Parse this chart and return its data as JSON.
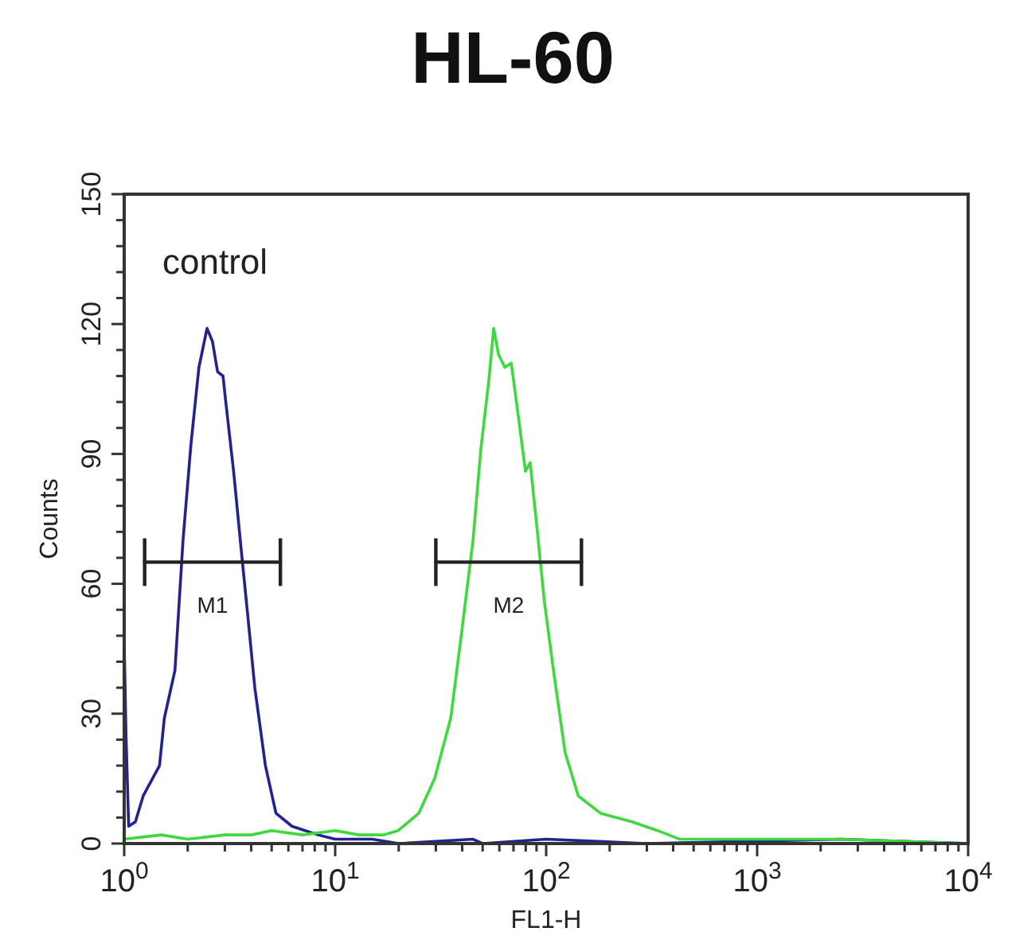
{
  "chart_data": {
    "type": "line",
    "title": "HL-60",
    "xlabel": "FL1-H",
    "ylabel": "Counts",
    "log": "x",
    "xlim": [
      1,
      10000
    ],
    "xticks": [
      {
        "value": 1,
        "label": "10$^{0}$"
      },
      {
        "value": 2,
        "label": null
      },
      {
        "value": 3,
        "label": null
      },
      {
        "value": 4,
        "label": null
      },
      {
        "value": 5,
        "label": null
      },
      {
        "value": 6,
        "label": null
      },
      {
        "value": 7,
        "label": null
      },
      {
        "value": 8,
        "label": null
      },
      {
        "value": 9,
        "label": null
      },
      {
        "value": 10,
        "label": "10$^{1}$"
      },
      {
        "value": 20,
        "label": null
      },
      {
        "value": 30,
        "label": null
      },
      {
        "value": 40,
        "label": null
      },
      {
        "value": 50,
        "label": null
      },
      {
        "value": 60,
        "label": null
      },
      {
        "value": 70,
        "label": null
      },
      {
        "value": 80,
        "label": null
      },
      {
        "value": 90,
        "label": null
      },
      {
        "value": 100,
        "label": "10$^{2}$"
      },
      {
        "value": 200,
        "label": null
      },
      {
        "value": 300,
        "label": null
      },
      {
        "value": 400,
        "label": null
      },
      {
        "value": 500,
        "label": null
      },
      {
        "value": 600,
        "label": null
      },
      {
        "value": 700,
        "label": null
      },
      {
        "value": 800,
        "label": null
      },
      {
        "value": 900,
        "label": null
      },
      {
        "value": 1000,
        "label": "10$^{3}$"
      },
      {
        "value": 2000,
        "label": null
      },
      {
        "value": 3000,
        "label": null
      },
      {
        "value": 4000,
        "label": null
      },
      {
        "value": 5000,
        "label": null
      },
      {
        "value": 6000,
        "label": null
      },
      {
        "value": 7000,
        "label": null
      },
      {
        "value": 8000,
        "label": null
      },
      {
        "value": 9000,
        "label": null
      },
      {
        "value": 10000,
        "label": "10$^{4}$"
      }
    ],
    "ylim": [
      0,
      150
    ],
    "yticks": [
      0,
      {
        "value": 6,
        "label": null
      },
      {
        "value": 12,
        "label": null
      },
      {
        "value": 18,
        "label": null
      },
      {
        "value": 24,
        "label": null
      },
      30,
      {
        "value": 36,
        "label": null
      },
      {
        "value": 42,
        "label": null
      },
      {
        "value": 48,
        "label": null
      },
      {
        "value": 54,
        "label": null
      },
      60,
      {
        "value": 66,
        "label": null
      },
      {
        "value": 72,
        "label": null
      },
      {
        "value": 78,
        "label": null
      },
      {
        "value": 84,
        "label": null
      },
      90,
      {
        "value": 96,
        "label": null
      },
      {
        "value": 102,
        "label": null
      },
      {
        "value": 108,
        "label": null
      },
      {
        "value": 114,
        "label": null
      },
      120,
      {
        "value": 126,
        "label": null
      },
      {
        "value": 132,
        "label": null
      },
      {
        "value": 138,
        "label": null
      },
      {
        "value": 144,
        "label": null
      },
      150
    ],
    "series": [
      {
        "color": "#23238f",
        "x": [
          1,
          1,
          1.02,
          1.05,
          1.13,
          1.23,
          1.47,
          1.55,
          1.74,
          1.9,
          2.07,
          2.26,
          2.47,
          2.62,
          2.77,
          2.94,
          3.03,
          3.3,
          3.6,
          3.81,
          4.16,
          4.67,
          5.24,
          6.24,
          8.3,
          10,
          15,
          20,
          45,
          50,
          100,
          300,
          2500,
          10000
        ],
        "values": [
          0,
          46,
          25,
          4,
          5,
          11,
          18,
          29,
          40,
          70,
          92,
          110,
          119,
          116,
          109,
          108,
          102,
          86,
          67,
          55,
          36,
          18,
          7,
          4,
          2,
          1,
          1,
          0,
          1,
          0,
          1,
          0,
          1,
          0
        ]
      },
      {
        "color": "#3fd93f",
        "x": [
          1,
          1.5,
          2,
          3,
          4,
          5,
          7,
          10,
          13,
          17,
          19.9,
          24.9,
          29.6,
          35.3,
          39.8,
          45,
          49,
          53.5,
          56.4,
          59.4,
          63.7,
          68.3,
          73.2,
          79.8,
          84,
          90,
          98,
          109,
          123,
          142,
          181,
          256,
          337,
          430,
          500,
          900,
          2500,
          10000
        ],
        "values": [
          1,
          2,
          1,
          2,
          2,
          3,
          2,
          3,
          2,
          2,
          3,
          7,
          15,
          29,
          49,
          70,
          91,
          107,
          119,
          113,
          110,
          111,
          100,
          86,
          88,
          74,
          56,
          39,
          21,
          11,
          7,
          5,
          3,
          1,
          1,
          1,
          1,
          0
        ]
      },
      {
        "name": "M1",
        "color": "#222222",
        "x": [
          1.25,
          5.5
        ],
        "values": [
          65,
          65
        ],
        "errors": [
          5.5,
          5.5
        ]
      },
      {
        "name": "M2",
        "color": "#222222",
        "x": [
          30,
          147
        ],
        "values": [
          65,
          65
        ],
        "errors": [
          5.5,
          5.5
        ]
      }
    ],
    "annotations": [
      "control"
    ]
  }
}
